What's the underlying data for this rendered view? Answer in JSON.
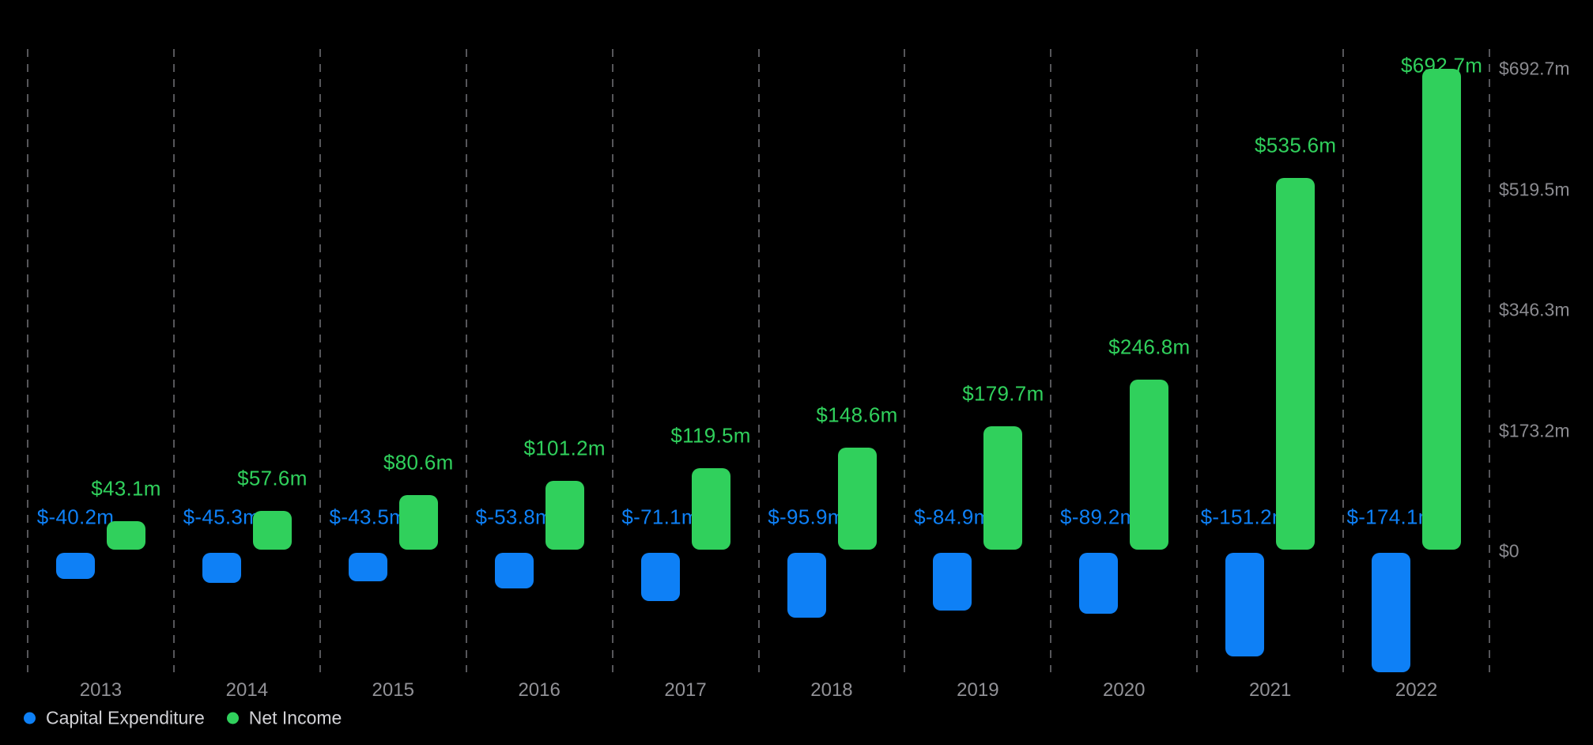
{
  "chart_data": {
    "type": "bar",
    "title": "",
    "categories": [
      "2013",
      "2014",
      "2015",
      "2016",
      "2017",
      "2018",
      "2019",
      "2020",
      "2021",
      "2022"
    ],
    "series": [
      {
        "name": "Capital Expenditure",
        "color": "#0e80f6",
        "values": [
          -40.2,
          -45.3,
          -43.5,
          -53.8,
          -71.1,
          -95.9,
          -84.9,
          -89.2,
          -151.2,
          -174.1
        ],
        "data_labels": [
          "$-40.2m",
          "$-45.3m",
          "$-43.5m",
          "$-53.8m",
          "$-71.1m",
          "$-95.9m",
          "$-84.9m",
          "$-89.2m",
          "$-151.2m",
          "$-174.1m"
        ]
      },
      {
        "name": "Net Income",
        "color": "#30d05c",
        "values": [
          43.1,
          57.6,
          80.6,
          101.2,
          119.5,
          148.6,
          179.7,
          246.8,
          535.6,
          692.7
        ],
        "data_labels": [
          "$43.1m",
          "$57.6m",
          "$80.6m",
          "$101.2m",
          "$119.5m",
          "$148.6m",
          "$179.7m",
          "$246.8m",
          "$535.6m",
          "$692.7m"
        ]
      }
    ],
    "y_axis": {
      "tick_values": [
        692.7,
        519.5,
        346.3,
        173.2,
        0
      ],
      "tick_labels": [
        "$692.7m",
        "$519.5m",
        "$346.3m",
        "$173.2m",
        "$0"
      ],
      "position": "right"
    },
    "ylim": [
      -200,
      720
    ],
    "xlabel": "",
    "ylabel": "",
    "grid": "vertical-dashed",
    "legend_position": "bottom-left",
    "colors": {
      "background": "#000000",
      "gridline": "#56565a",
      "y_axis_text": "#8a8a8f",
      "x_axis_text": "#919196",
      "legend_text": "#d2d2d6"
    }
  }
}
